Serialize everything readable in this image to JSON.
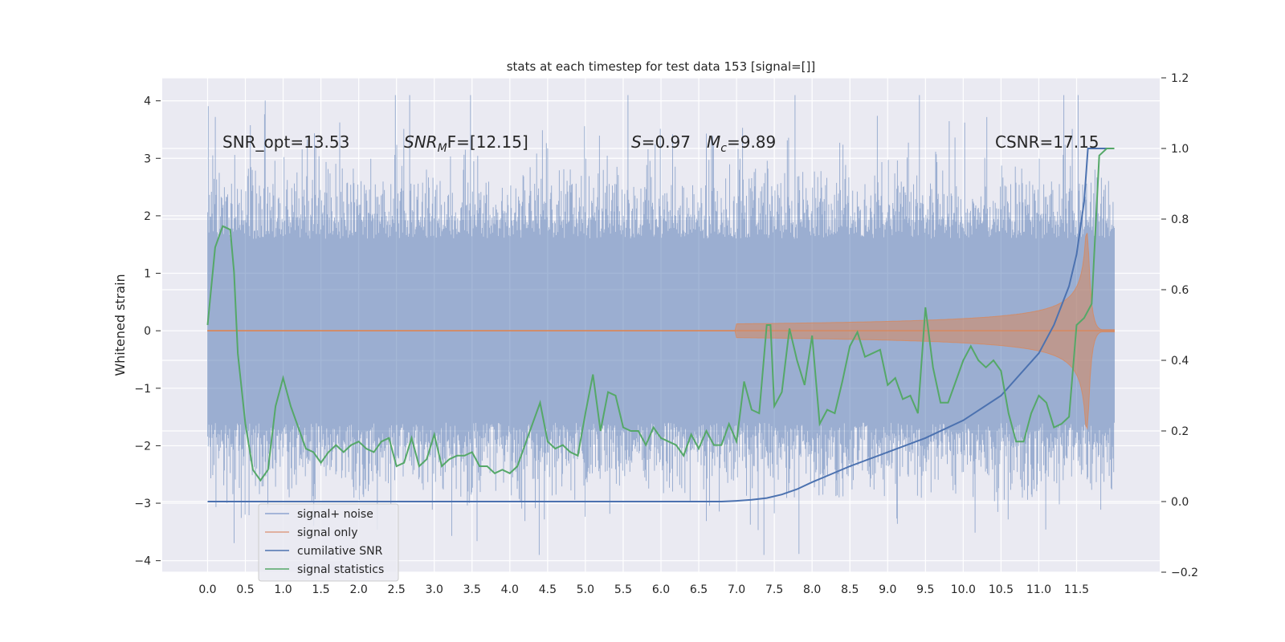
{
  "chart_data": {
    "type": "line",
    "title": "stats at each timestep for test data 153 [signal=[]]",
    "ylabel": "Whitened strain",
    "xlabel": "",
    "xlim": [
      -0.6,
      12.6
    ],
    "ylim": [
      -4.2,
      4.4
    ],
    "y2lim": [
      -0.2,
      1.2
    ],
    "x_ticks": [
      "0.0",
      "0.5",
      "1.0",
      "1.5",
      "2.0",
      "2.5",
      "3.0",
      "3.5",
      "4.0",
      "4.5",
      "5.0",
      "5.5",
      "6.0",
      "6.5",
      "7.0",
      "7.5",
      "8.0",
      "8.5",
      "9.0",
      "9.5",
      "10.0",
      "10.5",
      "11.0",
      "11.5"
    ],
    "y_ticks": [
      "4",
      "3",
      "2",
      "1",
      "0",
      "−1",
      "−2",
      "−3",
      "−4"
    ],
    "y2_ticks": [
      "1.2",
      "1.0",
      "0.8",
      "0.6",
      "0.4",
      "0.2",
      "0.0",
      "−0.2"
    ],
    "grid": true,
    "legend_position": "lower-left",
    "annotations": {
      "snr_opt": "SNR_opt=13.53",
      "snr_mf_main": "SNR",
      "snr_mf_sub": "M",
      "snr_mf_rest": "F=[12.15]",
      "s_main": "S",
      "s_rest": "=0.97",
      "mc_main": "M",
      "mc_sub": "c",
      "mc_rest": "=9.89",
      "csnr": "CSNR=17.15"
    },
    "series": [
      {
        "name": "signal+ noise",
        "color": "#4c72b0",
        "axis": "left",
        "style": "noise band, roughly ±2 with spikes to ±4, t=0 to 12.0"
      },
      {
        "name": "signal only",
        "color": "#dd8452",
        "axis": "left",
        "style": "chirp, amplitude grows from ~0 at t=7 to ~±1.7 at t=11.65 then decays"
      },
      {
        "name": "cumilative SNR",
        "color": "#4c72b0",
        "axis": "right",
        "x": [
          0.0,
          6.0,
          6.8,
          7.0,
          7.2,
          7.4,
          7.6,
          7.8,
          8.0,
          8.5,
          9.0,
          9.5,
          10.0,
          10.5,
          11.0,
          11.2,
          11.4,
          11.5,
          11.6,
          11.65,
          11.7,
          12.0
        ],
        "values": [
          0.0,
          0.0,
          0.0,
          0.002,
          0.005,
          0.01,
          0.02,
          0.035,
          0.055,
          0.1,
          0.14,
          0.18,
          0.23,
          0.3,
          0.42,
          0.5,
          0.61,
          0.7,
          0.85,
          1.0,
          1.0,
          1.0
        ]
      },
      {
        "name": "signal statistics",
        "color": "#55a868",
        "axis": "right",
        "x": [
          0.0,
          0.1,
          0.2,
          0.3,
          0.35,
          0.4,
          0.5,
          0.6,
          0.7,
          0.8,
          0.9,
          1.0,
          1.1,
          1.2,
          1.3,
          1.4,
          1.5,
          1.6,
          1.7,
          1.8,
          1.9,
          2.0,
          2.1,
          2.2,
          2.3,
          2.4,
          2.5,
          2.6,
          2.7,
          2.8,
          2.9,
          3.0,
          3.1,
          3.2,
          3.3,
          3.4,
          3.5,
          3.6,
          3.7,
          3.8,
          3.9,
          4.0,
          4.1,
          4.2,
          4.3,
          4.4,
          4.5,
          4.6,
          4.7,
          4.8,
          4.9,
          5.0,
          5.1,
          5.2,
          5.3,
          5.4,
          5.5,
          5.6,
          5.7,
          5.8,
          5.9,
          6.0,
          6.1,
          6.2,
          6.3,
          6.4,
          6.5,
          6.6,
          6.7,
          6.8,
          6.9,
          7.0,
          7.1,
          7.2,
          7.3,
          7.4,
          7.45,
          7.5,
          7.6,
          7.7,
          7.8,
          7.9,
          8.0,
          8.1,
          8.2,
          8.3,
          8.4,
          8.5,
          8.6,
          8.7,
          8.8,
          8.9,
          9.0,
          9.1,
          9.2,
          9.3,
          9.4,
          9.5,
          9.6,
          9.7,
          9.8,
          9.9,
          10.0,
          10.1,
          10.2,
          10.3,
          10.4,
          10.5,
          10.6,
          10.7,
          10.8,
          10.9,
          11.0,
          11.1,
          11.2,
          11.3,
          11.4,
          11.5,
          11.6,
          11.7,
          11.8,
          11.9,
          12.0
        ],
        "values": [
          0.5,
          0.72,
          0.78,
          0.77,
          0.65,
          0.42,
          0.22,
          0.09,
          0.06,
          0.09,
          0.27,
          0.35,
          0.27,
          0.21,
          0.15,
          0.14,
          0.11,
          0.14,
          0.16,
          0.14,
          0.16,
          0.17,
          0.15,
          0.14,
          0.17,
          0.18,
          0.1,
          0.11,
          0.18,
          0.1,
          0.12,
          0.19,
          0.1,
          0.12,
          0.13,
          0.13,
          0.14,
          0.1,
          0.1,
          0.08,
          0.09,
          0.08,
          0.1,
          0.16,
          0.22,
          0.28,
          0.17,
          0.15,
          0.16,
          0.14,
          0.13,
          0.25,
          0.36,
          0.2,
          0.31,
          0.3,
          0.21,
          0.2,
          0.2,
          0.16,
          0.21,
          0.18,
          0.17,
          0.16,
          0.13,
          0.19,
          0.15,
          0.2,
          0.16,
          0.16,
          0.22,
          0.17,
          0.34,
          0.26,
          0.25,
          0.5,
          0.5,
          0.27,
          0.31,
          0.49,
          0.4,
          0.33,
          0.47,
          0.22,
          0.26,
          0.25,
          0.34,
          0.44,
          0.48,
          0.41,
          0.42,
          0.43,
          0.33,
          0.35,
          0.29,
          0.3,
          0.25,
          0.55,
          0.38,
          0.28,
          0.28,
          0.34,
          0.4,
          0.44,
          0.4,
          0.38,
          0.4,
          0.37,
          0.25,
          0.17,
          0.17,
          0.25,
          0.3,
          0.28,
          0.21,
          0.22,
          0.24,
          0.5,
          0.52,
          0.56,
          0.98,
          1.0,
          1.0
        ]
      }
    ]
  }
}
